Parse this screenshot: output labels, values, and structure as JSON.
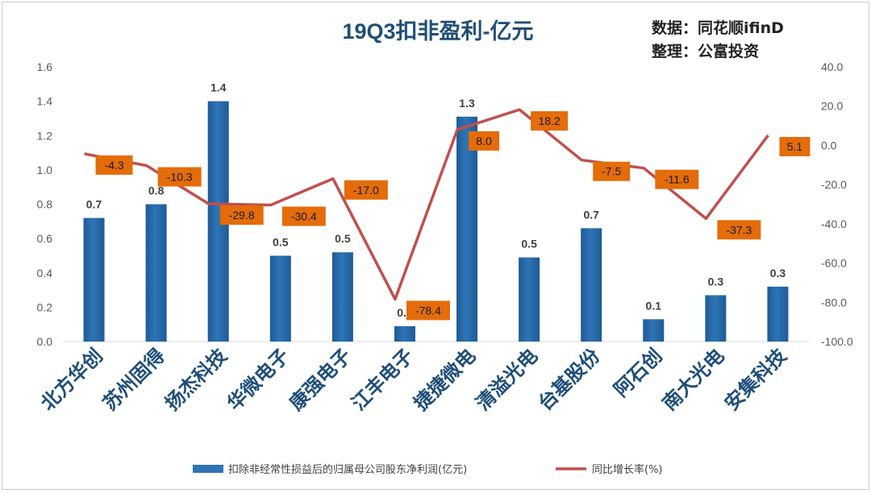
{
  "header": {
    "title": "19Q3扣非盈利-亿元",
    "source_line1": "数据：同花顺ifinD",
    "source_line2": "整理：公富投资"
  },
  "colors": {
    "bar": "#2e75b6",
    "bar_dark": "#1f5a96",
    "line": "#c0504d",
    "label_box": "#e46c0a",
    "gridline": "#d9d9d9"
  },
  "chart_data": {
    "type": "bar",
    "categories": [
      "北方华创",
      "苏州固得",
      "扬杰科技",
      "华微电子",
      "康强电子",
      "江丰电子",
      "捷捷微电",
      "清溢光电",
      "台基股份",
      "阿石创",
      "南大光电",
      "安集科技"
    ],
    "series": [
      {
        "name": "扣除非经常性损益后的归属母公司股东净利润(亿元)",
        "type": "bar",
        "axis": "left",
        "values": [
          0.72,
          0.8,
          1.4,
          0.5,
          0.52,
          0.09,
          1.31,
          0.49,
          0.66,
          0.13,
          0.27,
          0.32
        ],
        "labels": [
          "0.7",
          "0.8",
          "1.4",
          "0.5",
          "0.5",
          "0.1",
          "1.3",
          "0.5",
          "0.7",
          "0.1",
          "0.3",
          "0.3"
        ]
      },
      {
        "name": "同比增长率(%)",
        "type": "line",
        "axis": "right",
        "values": [
          -4.3,
          -10.3,
          -29.8,
          -30.4,
          -17.0,
          -78.4,
          8.0,
          18.2,
          -7.5,
          -11.6,
          -37.3,
          5.1
        ],
        "labels": [
          "-4.3",
          "-10.3",
          "-29.8",
          "-30.4",
          "-17.0",
          "-78.4",
          "8.0",
          "18.2",
          "-7.5",
          "-11.6",
          "-37.3",
          "5.1"
        ]
      }
    ],
    "y_left": {
      "lim": [
        0,
        1.6
      ],
      "ticks": [
        0,
        0.2,
        0.4,
        0.6,
        0.8,
        1.0,
        1.2,
        1.4,
        1.6
      ],
      "tick_labels": [
        "0.0",
        "0.2",
        "0.4",
        "0.6",
        "0.8",
        "1.0",
        "1.2",
        "1.4",
        "1.6"
      ]
    },
    "y_right": {
      "lim": [
        -100,
        40
      ],
      "ticks": [
        -100,
        -80,
        -60,
        -40,
        -20,
        0,
        20,
        40
      ],
      "tick_labels": [
        "-100.0",
        "-80.0",
        "-60.0",
        "-40.0",
        "-20.0",
        "0.0",
        "20.0",
        "40.0"
      ]
    },
    "grid": false,
    "legend_position": "bottom"
  }
}
